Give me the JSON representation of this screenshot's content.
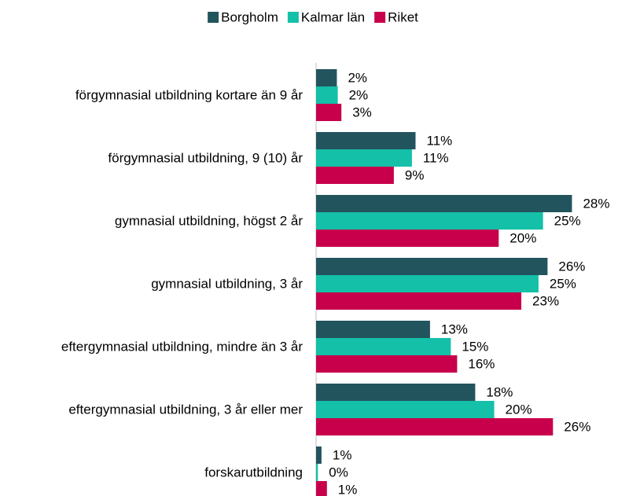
{
  "chart_data": {
    "type": "bar",
    "orientation": "horizontal",
    "categories": [
      "förgymnasial utbildning kortare än 9 år",
      "förgymnasial utbildning, 9 (10) år",
      "gymnasial utbildning, högst 2 år",
      "gymnasial utbildning, 3 år",
      "eftergymnasial utbildning, mindre än 3 år",
      "eftergymnasial utbildning, 3 år eller mer",
      "forskarutbildning"
    ],
    "series": [
      {
        "name": "Borgholm",
        "color": "#22545e",
        "values": [
          2.3,
          11.0,
          28.3,
          25.6,
          12.6,
          17.6,
          0.6
        ],
        "value_labels": [
          "2%",
          "11%",
          "28%",
          "26%",
          "13%",
          "18%",
          "1%"
        ]
      },
      {
        "name": "Kalmar län",
        "color": "#14c0a8",
        "values": [
          2.4,
          10.6,
          25.1,
          24.6,
          14.9,
          19.7,
          0.2
        ],
        "value_labels": [
          "2%",
          "11%",
          "25%",
          "25%",
          "15%",
          "20%",
          "0%"
        ]
      },
      {
        "name": "Riket",
        "color": "#c8004b",
        "values": [
          2.8,
          8.6,
          20.2,
          22.7,
          15.6,
          26.2,
          1.2
        ],
        "value_labels": [
          "3%",
          "9%",
          "20%",
          "23%",
          "16%",
          "26%",
          "1%"
        ]
      }
    ],
    "xlim": [
      0,
      32
    ],
    "legend": "top"
  }
}
